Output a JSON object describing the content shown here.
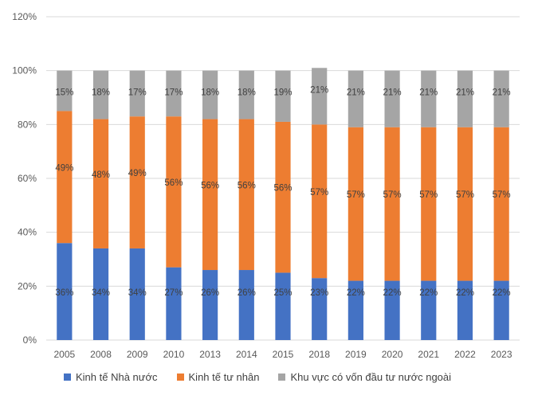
{
  "chart_data": {
    "type": "bar",
    "stacked": true,
    "categories": [
      "2005",
      "2008",
      "2009",
      "2010",
      "2013",
      "2014",
      "2015",
      "2018",
      "2019",
      "2020",
      "2021",
      "2022",
      "2023"
    ],
    "series": [
      {
        "name": "Kinh tế Nhà nước",
        "color": "#4472C4",
        "values": [
          36,
          34,
          34,
          27,
          26,
          26,
          25,
          23,
          22,
          22,
          22,
          22,
          22
        ],
        "labels": [
          "36%",
          "34%",
          "34%",
          "27%",
          "26%",
          "26%",
          "25%",
          "23%",
          "22%",
          "22%",
          "22%",
          "22%",
          "22%"
        ]
      },
      {
        "name": "Kinh tế tư nhân",
        "color": "#ED7D31",
        "values": [
          49,
          48,
          49,
          56,
          56,
          56,
          56,
          57,
          57,
          57,
          57,
          57,
          57
        ],
        "labels": [
          "49%",
          "48%",
          "49%",
          "56%",
          "56%",
          "56%",
          "56%",
          "57%",
          "57%",
          "57%",
          "57%",
          "57%",
          "57%"
        ]
      },
      {
        "name": "Khu vực có vốn đầu tư nước ngoài",
        "color": "#A5A5A5",
        "values": [
          15,
          18,
          17,
          17,
          18,
          18,
          19,
          21,
          21,
          21,
          21,
          21,
          21
        ],
        "labels": [
          "15%",
          "18%",
          "17%",
          "17%",
          "18%",
          "18%",
          "19%",
          "21%",
          "21%",
          "21%",
          "21%",
          "21%",
          "21%"
        ]
      }
    ],
    "y_ticks": [
      "0%",
      "20%",
      "40%",
      "60%",
      "80%",
      "100%",
      "120%"
    ],
    "ylim": [
      0,
      120
    ],
    "gridlines": true,
    "legend_position": "bottom"
  }
}
